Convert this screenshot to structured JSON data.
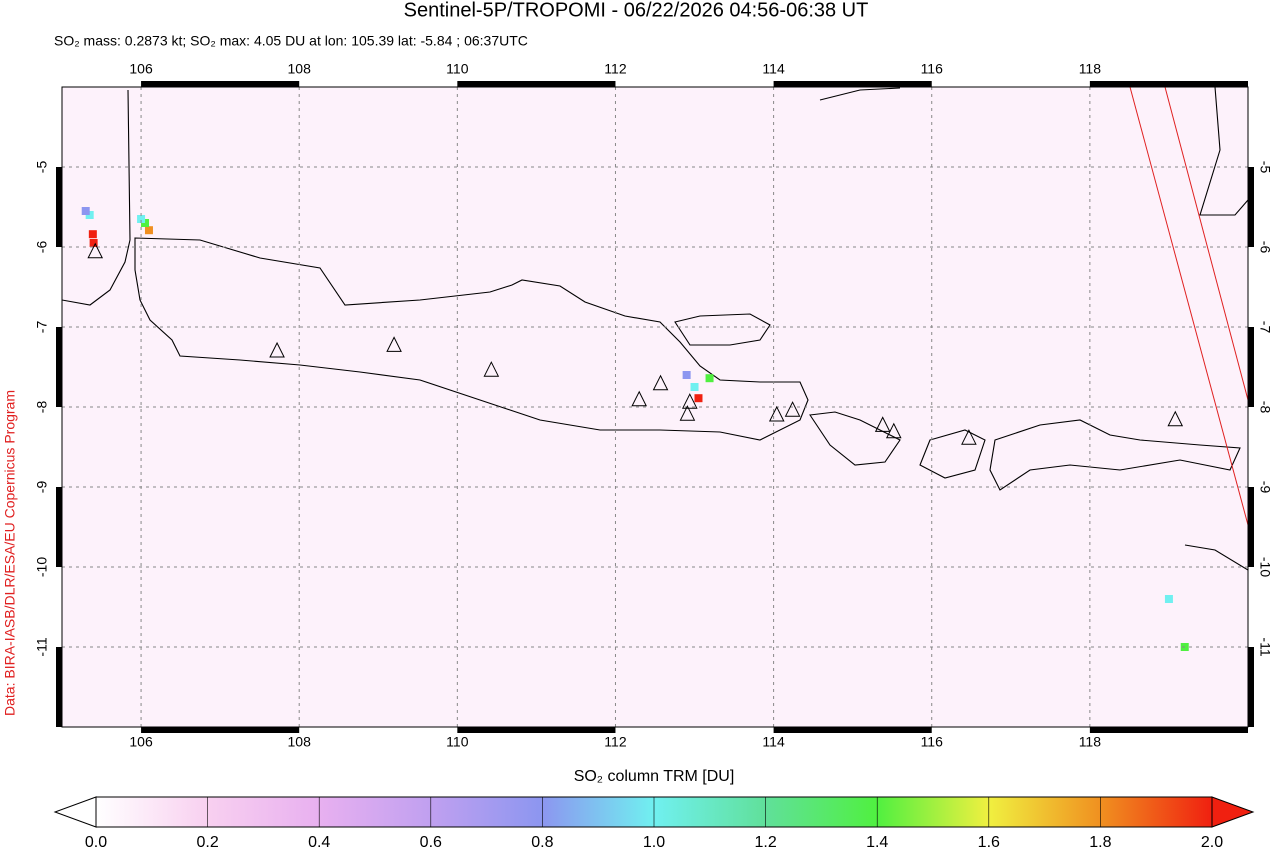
{
  "title": "Sentinel-5P/TROPOMI - 06/22/2026 04:56-06:38 UT",
  "subtitle": "SO₂ mass: 0.2873 kt; SO₂ max: 4.05 DU at lon: 105.39 lat: -5.84 ; 06:37UTC",
  "credit": "Data: BIRA-IASB/DLR/ESA/EU Copernicus Program",
  "map": {
    "xlim": [
      105,
      120
    ],
    "ylim": [
      -12,
      -4
    ],
    "xticks": [
      106,
      108,
      110,
      112,
      114,
      116,
      118
    ],
    "yticks": [
      -5,
      -6,
      -7,
      -8,
      -9,
      -10,
      -11
    ],
    "volcanoes": [
      [
        105.42,
        -6.06
      ],
      [
        107.72,
        -7.3
      ],
      [
        109.2,
        -7.23
      ],
      [
        110.43,
        -7.54
      ],
      [
        112.3,
        -7.91
      ],
      [
        112.57,
        -7.71
      ],
      [
        112.94,
        -7.94
      ],
      [
        112.91,
        -8.09
      ],
      [
        114.04,
        -8.1
      ],
      [
        114.24,
        -8.04
      ],
      [
        115.38,
        -8.23
      ],
      [
        115.52,
        -8.31
      ],
      [
        116.47,
        -8.39
      ],
      [
        119.08,
        -8.16
      ]
    ],
    "so2_pixels": [
      [
        105.39,
        -5.84,
        2.0
      ],
      [
        105.4,
        -5.95,
        1.9
      ],
      [
        105.35,
        -5.6,
        1.0
      ],
      [
        105.3,
        -5.55,
        0.8
      ],
      [
        106.1,
        -5.79,
        1.8
      ],
      [
        106.05,
        -5.7,
        1.3
      ],
      [
        106.0,
        -5.65,
        0.9
      ],
      [
        113.19,
        -7.64,
        1.4
      ],
      [
        113.05,
        -7.89,
        2.0
      ],
      [
        113.0,
        -7.75,
        1.0
      ],
      [
        112.9,
        -7.6,
        0.7
      ],
      [
        119.2,
        -11.0,
        1.3
      ],
      [
        119.0,
        -10.4,
        1.0
      ]
    ]
  },
  "colorbar": {
    "label": "SO₂ column TRM [DU]",
    "lim": [
      0,
      2
    ],
    "colors": [
      "#ffffff",
      "#f8d0f0",
      "#e8b0f0",
      "#c0a0f0",
      "#8c96f0",
      "#70f0f0",
      "#60e09a",
      "#50f040",
      "#f0f040",
      "#f09020",
      "#f02010"
    ],
    "ticks": [
      {
        "value": 0,
        "label": "0.0"
      },
      {
        "value": 0.2,
        "label": "0.2"
      },
      {
        "value": 0.4,
        "label": "0.4"
      },
      {
        "value": 0.6,
        "label": "0.6"
      },
      {
        "value": 0.8,
        "label": "0.8"
      },
      {
        "value": 1,
        "label": "1.0"
      },
      {
        "value": 1.2,
        "label": "1.2"
      },
      {
        "value": 1.4,
        "label": "1.4"
      },
      {
        "value": 1.6,
        "label": "1.6"
      },
      {
        "value": 1.8,
        "label": "1.8"
      },
      {
        "value": 2,
        "label": "2.0"
      }
    ]
  }
}
